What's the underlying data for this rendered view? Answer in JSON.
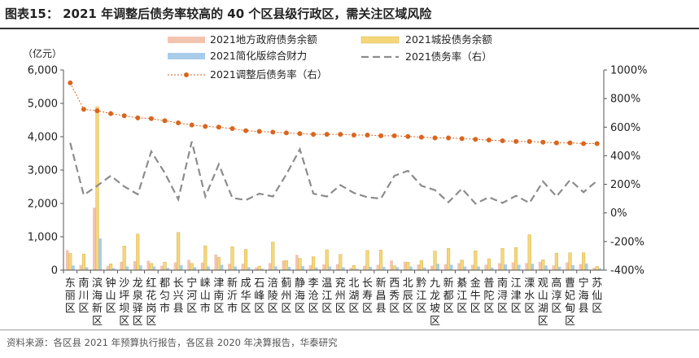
{
  "header": {
    "title": "图表15： 2021 年调整后债务率较高的 40 个区县级行政区，需关注区域风险"
  },
  "footer": {
    "source": "资料来源：各区县 2021 年预算执行报告，各区县 2020 年决算报告，华泰研究"
  },
  "chart_data": {
    "type": "bar",
    "left_unit": "（亿元）",
    "ylim_left": [
      0,
      6000
    ],
    "yticks_left": [
      "0",
      "1,000",
      "2,000",
      "3,000",
      "4,000",
      "5,000",
      "6,000"
    ],
    "ylim_right": [
      -400,
      1000
    ],
    "yticks_right": [
      "-400%",
      "-200%",
      "0%",
      "200%",
      "400%",
      "600%",
      "800%",
      "1000%"
    ],
    "categories": [
      "东丽区",
      "南川区",
      "滨海新区",
      "钟山区",
      "沙坪坝区",
      "龙泉驿区",
      "红花岗区",
      "都匀市",
      "长兴县",
      "宁河区",
      "崃山市",
      "津南区",
      "新沂市",
      "成华区",
      "石峰区",
      "涪陵区",
      "蓟州区",
      "静海区",
      "李沧区",
      "温江区",
      "兖州区",
      "北湖区",
      "长寿区",
      "新昌县",
      "西秀区",
      "北辰区",
      "黔江区",
      "九龙坡区",
      "新都区",
      "綦江区",
      "金牛区",
      "普陀区",
      "南浔区",
      "江津区",
      "溧水区",
      "观山湖区",
      "高淳区",
      "曹妃甸区",
      "宁海县",
      "苏仙区"
    ],
    "legend": [
      "2021地方政府债务余额",
      "2021城投债务余额",
      "2021简化版综合财力",
      "2021债务率（右）",
      "2021调整后债务率（右）"
    ],
    "colors": {
      "gov": "#f2c4b0",
      "lgfv": "#f5d77a",
      "fin": "#a9cce9",
      "debt": "#8c8c8c",
      "adj": "#d9661f"
    },
    "series": [
      {
        "name": "2021地方政府债务余额",
        "axis": "left",
        "values": [
          600,
          150,
          1870,
          130,
          250,
          270,
          280,
          130,
          230,
          310,
          230,
          470,
          190,
          190,
          80,
          210,
          290,
          460,
          150,
          170,
          180,
          70,
          130,
          160,
          290,
          250,
          170,
          130,
          180,
          210,
          160,
          160,
          210,
          230,
          210,
          250,
          140,
          230,
          180,
          70
        ]
      },
      {
        "name": "2021城投债务余额",
        "axis": "left",
        "values": [
          500,
          480,
          4900,
          190,
          720,
          1080,
          200,
          240,
          1130,
          200,
          730,
          380,
          700,
          620,
          120,
          840,
          290,
          350,
          400,
          610,
          470,
          140,
          590,
          600,
          130,
          240,
          290,
          570,
          650,
          300,
          580,
          340,
          650,
          680,
          1060,
          310,
          510,
          520,
          520,
          110
        ]
      },
      {
        "name": "2021简化版综合财力",
        "axis": "left",
        "values": [
          140,
          90,
          950,
          60,
          110,
          140,
          110,
          70,
          150,
          90,
          110,
          160,
          110,
          90,
          40,
          110,
          100,
          120,
          80,
          110,
          90,
          40,
          100,
          100,
          90,
          110,
          80,
          190,
          160,
          110,
          110,
          80,
          170,
          160,
          190,
          140,
          100,
          150,
          200,
          60
        ]
      },
      {
        "name": "2021债务率（右）",
        "axis": "right",
        "values": [
          490,
          125,
          190,
          260,
          185,
          130,
          430,
          280,
          95,
          500,
          115,
          340,
          105,
          90,
          135,
          115,
          270,
          445,
          135,
          115,
          195,
          140,
          110,
          100,
          260,
          295,
          190,
          160,
          75,
          170,
          65,
          110,
          70,
          120,
          70,
          220,
          115,
          230,
          145,
          225
        ]
      },
      {
        "name": "2021调整后债务率（右）",
        "axis": "right",
        "values": [
          910,
          725,
          715,
          695,
          680,
          665,
          660,
          645,
          630,
          615,
          605,
          600,
          590,
          575,
          570,
          565,
          560,
          555,
          550,
          550,
          550,
          545,
          545,
          540,
          540,
          535,
          530,
          525,
          525,
          520,
          515,
          510,
          505,
          500,
          500,
          495,
          490,
          490,
          485,
          485
        ]
      }
    ]
  }
}
